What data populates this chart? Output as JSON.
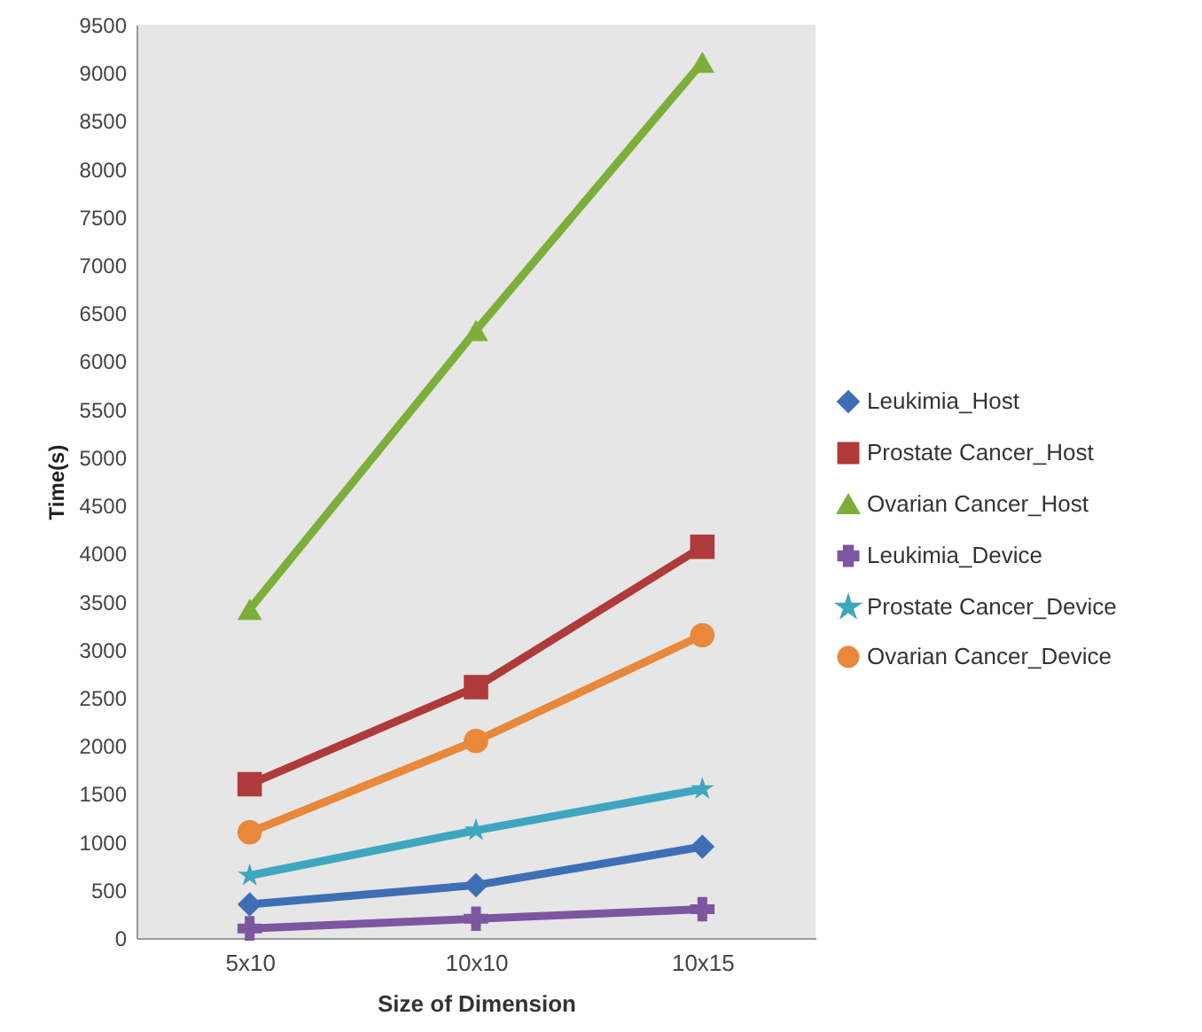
{
  "chart_data": {
    "type": "line",
    "xlabel": "Size of Dimension",
    "ylabel": "Time(s)",
    "categories": [
      "5x10",
      "10x10",
      "10x15"
    ],
    "series": [
      {
        "name": "Leukimia_Host",
        "color": "#3e6fb5",
        "marker": "diamond",
        "values": [
          350,
          550,
          950
        ]
      },
      {
        "name": "Prostate Cancer_Host",
        "color": "#b03a3a",
        "marker": "square",
        "values": [
          1600,
          2610,
          4070
        ]
      },
      {
        "name": "Ovarian Cancer_Host",
        "color": "#7dae3a",
        "marker": "triangle",
        "values": [
          3420,
          6320,
          9110
        ]
      },
      {
        "name": "Leukimia_Device",
        "color": "#7d56a0",
        "marker": "cross",
        "values": [
          100,
          200,
          300
        ]
      },
      {
        "name": "Prostate Cancer_Device",
        "color": "#3ea6bf",
        "marker": "star",
        "values": [
          650,
          1120,
          1550
        ]
      },
      {
        "name": "Ovarian Cancer_Device",
        "color": "#e8883a",
        "marker": "circle",
        "values": [
          1100,
          2050,
          3150
        ]
      }
    ],
    "ylim": [
      0,
      9500
    ],
    "yticks": [
      0,
      500,
      1000,
      1500,
      2000,
      2500,
      3000,
      3500,
      4000,
      4500,
      5000,
      5500,
      6000,
      6500,
      7000,
      7500,
      8000,
      8500,
      9000,
      9500
    ],
    "grid": false,
    "legend": "right",
    "line_style": "solid"
  }
}
